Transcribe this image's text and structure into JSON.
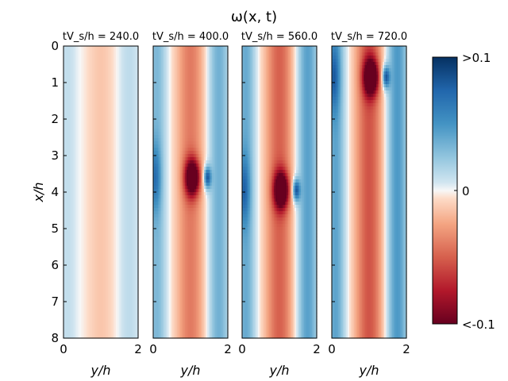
{
  "chart_data": {
    "type": "heatmap",
    "title": "ω(x, t)",
    "xlabel": "y/h",
    "ylabel": "x/h",
    "xlim": [
      0,
      2
    ],
    "ylim": [
      8,
      0
    ],
    "x_ticks": [
      "0",
      "2"
    ],
    "y_ticks": [
      "0",
      "1",
      "2",
      "3",
      "4",
      "5",
      "6",
      "7",
      "8"
    ],
    "colorbar": {
      "ticks": [
        ">0.1",
        "0",
        "<-0.1"
      ],
      "vmin": -0.1,
      "vmax": 0.1,
      "colormap": "RdBu"
    },
    "panels": [
      {
        "label": "tV_s/h = 240.0",
        "time": 240.0,
        "spot_x": null,
        "amp_base": 0.015,
        "amp_spot": 0
      },
      {
        "label": "tV_s/h = 400.0",
        "time": 400.0,
        "spot_x": 3.6,
        "amp_base": 0.045,
        "amp_spot": 0.1
      },
      {
        "label": "tV_s/h = 560.0",
        "time": 560.0,
        "spot_x": 3.95,
        "amp_base": 0.055,
        "amp_spot": 0.1
      },
      {
        "label": "tV_s/h = 720.0",
        "time": 720.0,
        "spot_x": 0.85,
        "amp_base": 0.06,
        "amp_spot": 0.1
      }
    ]
  },
  "colors": {
    "neg": "#67001f",
    "pos": "#053061",
    "mid": "#f7f7f7"
  }
}
